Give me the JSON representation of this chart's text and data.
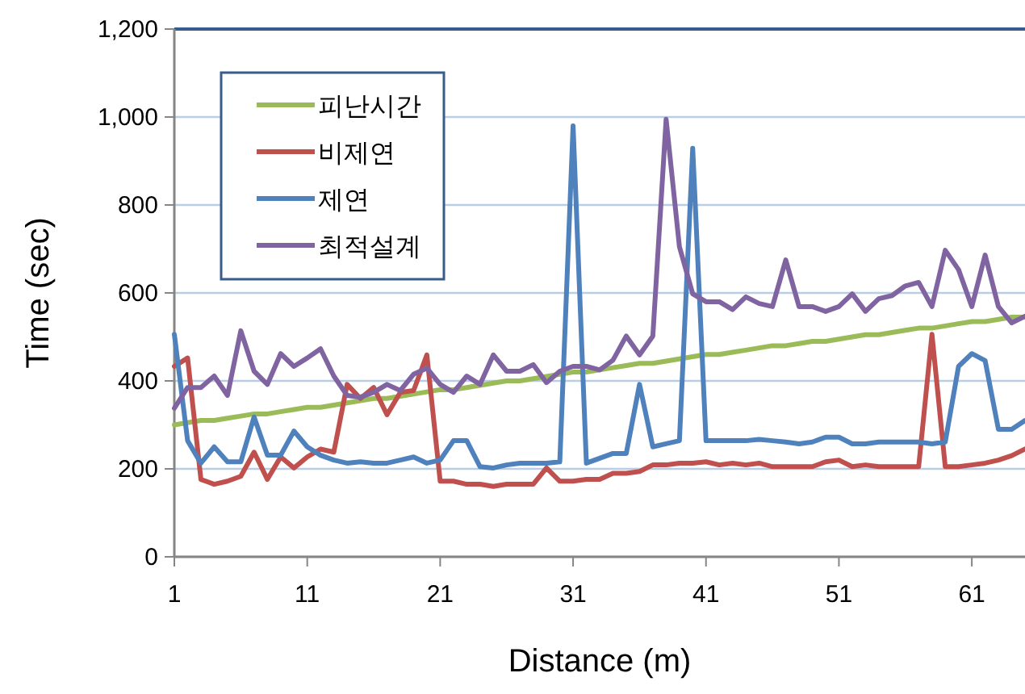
{
  "chart_data": {
    "type": "line",
    "xlabel": "Distance  (m)",
    "ylabel": "Time  (sec)",
    "x": [
      1,
      2,
      3,
      4,
      5,
      6,
      7,
      8,
      9,
      10,
      11,
      12,
      13,
      14,
      15,
      16,
      17,
      18,
      19,
      20,
      21,
      22,
      23,
      24,
      25,
      26,
      27,
      28,
      29,
      30,
      31,
      32,
      33,
      34,
      35,
      36,
      37,
      38,
      39,
      40,
      41,
      42,
      43,
      44,
      45,
      46,
      47,
      48,
      49,
      50,
      51,
      52,
      53,
      54,
      55,
      56,
      57,
      58,
      59,
      60,
      61,
      62,
      63,
      64,
      65
    ],
    "xlim": [
      1,
      65
    ],
    "xticks": [
      1,
      11,
      21,
      31,
      41,
      51,
      61
    ],
    "ylim": [
      0,
      1200
    ],
    "yticks": [
      0,
      200,
      400,
      600,
      800,
      {
        "value": 1000,
        "label": "1,000"
      },
      {
        "value": 1200,
        "label": "1,200"
      }
    ],
    "grid": "y",
    "legend": "top left",
    "marker": "none",
    "line_style": "solid",
    "series": [
      {
        "name": "피난시간",
        "color": "#9bbb59",
        "values": [
          300,
          305,
          310,
          310,
          315,
          320,
          325,
          325,
          330,
          335,
          340,
          340,
          345,
          350,
          355,
          360,
          360,
          365,
          370,
          375,
          380,
          380,
          385,
          390,
          395,
          400,
          400,
          405,
          410,
          415,
          420,
          420,
          425,
          430,
          435,
          440,
          440,
          445,
          450,
          455,
          460,
          460,
          465,
          470,
          475,
          480,
          480,
          485,
          490,
          490,
          495,
          500,
          505,
          505,
          510,
          515,
          520,
          520,
          525,
          530,
          535,
          535,
          540,
          545,
          545
        ]
      },
      {
        "name": "비제연",
        "color": "#c0504d",
        "values": [
          433,
          452,
          176,
          165,
          172,
          183,
          238,
          176,
          227,
          202,
          227,
          245,
          238,
          392,
          360,
          385,
          323,
          374,
          378,
          459,
          172,
          172,
          165,
          165,
          160,
          165,
          165,
          165,
          202,
          172,
          172,
          176,
          176,
          190,
          190,
          194,
          209,
          209,
          213,
          213,
          216,
          209,
          213,
          209,
          213,
          205,
          205,
          205,
          205,
          216,
          220,
          205,
          209,
          205,
          205,
          205,
          205,
          506,
          205,
          205,
          209,
          213,
          220,
          230,
          245
        ]
      },
      {
        "name": "제연",
        "color": "#4f81bd",
        "values": [
          506,
          264,
          213,
          250,
          216,
          216,
          318,
          231,
          231,
          286,
          250,
          231,
          220,
          213,
          216,
          213,
          213,
          220,
          227,
          213,
          220,
          264,
          264,
          205,
          202,
          209,
          213,
          213,
          213,
          216,
          980,
          213,
          224,
          235,
          235,
          392,
          250,
          257,
          264,
          929,
          264,
          264,
          264,
          264,
          267,
          264,
          261,
          257,
          261,
          272,
          272,
          257,
          257,
          261,
          261,
          261,
          261,
          257,
          261,
          433,
          462,
          446,
          290,
          290,
          310
        ]
      },
      {
        "name": "최적설계",
        "color": "#8064a2",
        "values": [
          338,
          385,
          385,
          411,
          367,
          514,
          422,
          392,
          462,
          433,
          452,
          473,
          411,
          367,
          363,
          374,
          392,
          378,
          415,
          429,
          392,
          374,
          411,
          392,
          459,
          422,
          422,
          437,
          396,
          422,
          433,
          433,
          425,
          447,
          502,
          459,
          502,
          995,
          705,
          598,
          580,
          580,
          562,
          591,
          576,
          569,
          675,
          569,
          569,
          558,
          569,
          598,
          558,
          587,
          594,
          616,
          624,
          569,
          697,
          653,
          569,
          686,
          569,
          532,
          547
        ]
      }
    ]
  }
}
